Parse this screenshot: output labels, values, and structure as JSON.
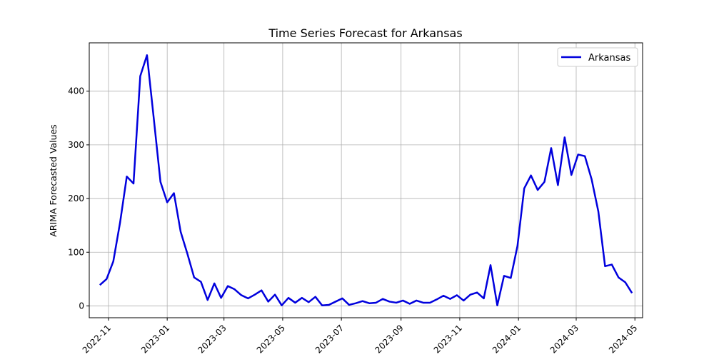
{
  "chart_data": {
    "type": "line",
    "title": "Time Series Forecast for Arkansas",
    "xlabel": "",
    "ylabel": "ARIMA Forecasted Values",
    "xlim": [
      "2022-10-12",
      "2024-05-09"
    ],
    "ylim": [
      -22,
      490
    ],
    "x_ticks": [
      "2022-11",
      "2023-01",
      "2023-03",
      "2023-05",
      "2023-07",
      "2023-09",
      "2023-11",
      "2024-01",
      "2024-03",
      "2024-05"
    ],
    "y_ticks": [
      0,
      100,
      200,
      300,
      400
    ],
    "grid": true,
    "legend": "upper-right",
    "series": [
      {
        "name": "Arkansas",
        "color": "#0000dd",
        "x": [
          "2022-10-23",
          "2022-10-30",
          "2022-11-06",
          "2022-11-13",
          "2022-11-20",
          "2022-11-27",
          "2022-12-04",
          "2022-12-11",
          "2022-12-18",
          "2022-12-25",
          "2023-01-01",
          "2023-01-08",
          "2023-01-15",
          "2023-01-22",
          "2023-01-29",
          "2023-02-05",
          "2023-02-12",
          "2023-02-19",
          "2023-02-26",
          "2023-03-05",
          "2023-03-12",
          "2023-03-19",
          "2023-03-26",
          "2023-04-02",
          "2023-04-09",
          "2023-04-16",
          "2023-04-23",
          "2023-04-30",
          "2023-05-07",
          "2023-05-14",
          "2023-05-21",
          "2023-05-28",
          "2023-06-04",
          "2023-06-11",
          "2023-06-18",
          "2023-06-25",
          "2023-07-02",
          "2023-07-09",
          "2023-07-16",
          "2023-07-23",
          "2023-07-30",
          "2023-08-06",
          "2023-08-13",
          "2023-08-20",
          "2023-08-27",
          "2023-09-03",
          "2023-09-10",
          "2023-09-17",
          "2023-09-24",
          "2023-10-01",
          "2023-10-08",
          "2023-10-15",
          "2023-10-22",
          "2023-10-29",
          "2023-11-05",
          "2023-11-12",
          "2023-11-19",
          "2023-11-26",
          "2023-12-03",
          "2023-12-10",
          "2023-12-17",
          "2023-12-24",
          "2023-12-31",
          "2024-01-07",
          "2024-01-14",
          "2024-01-21",
          "2024-01-28",
          "2024-02-04",
          "2024-02-11",
          "2024-02-18",
          "2024-02-25",
          "2024-03-03",
          "2024-03-10",
          "2024-03-17",
          "2024-03-24",
          "2024-03-31",
          "2024-04-07",
          "2024-04-14",
          "2024-04-21",
          "2024-04-28"
        ],
        "y": [
          39,
          50,
          83,
          155,
          241,
          228,
          428,
          467,
          350,
          231,
          193,
          210,
          138,
          97,
          53,
          45,
          11,
          42,
          15,
          37,
          31,
          20,
          14,
          21,
          29,
          8,
          21,
          1,
          15,
          6,
          15,
          7,
          17,
          1,
          2,
          8,
          14,
          2,
          5,
          9,
          5,
          6,
          13,
          8,
          6,
          10,
          4,
          10,
          6,
          6,
          12,
          19,
          13,
          20,
          10,
          21,
          25,
          14,
          76,
          1,
          56,
          52,
          112,
          219,
          243,
          216,
          231,
          294,
          225,
          314,
          244,
          282,
          279,
          236,
          176,
          74,
          77,
          53,
          44,
          24
        ]
      }
    ]
  }
}
